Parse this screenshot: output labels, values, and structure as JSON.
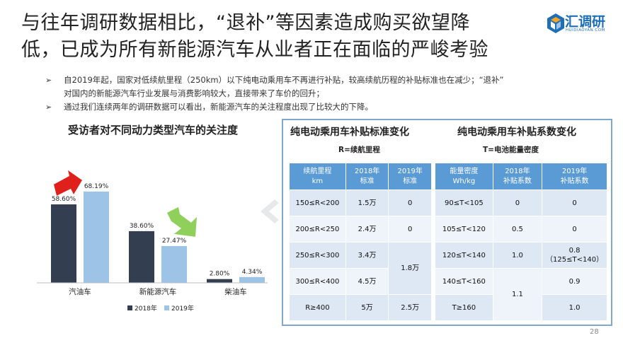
{
  "page": {
    "title_line1": "与往年调研数据相比，“退补”等因素造成购买欲望降",
    "title_line2": "低，已成为所有新能源汽车从业者正在面临的严峻考验",
    "logo_text": "汇调研",
    "logo_sub": "HUIDIAOYAN.COM",
    "page_number": "28"
  },
  "bullets": {
    "b1_line1": "自2019年起，国家对低续航里程（250km）以下纯电动乘用车不再进行补贴，较高续航历程的补贴标准也在减少；“退补”",
    "b1_line2": "对国内的新能源汽车行业发展与消费影响较大，直接带来了车价的回升；",
    "b2": "通过我们连续两年的调研数据可以看出，新能源汽车的关注程度出现了比较大的下降。",
    "mark": "➢"
  },
  "chart_data": {
    "type": "bar",
    "title": "受访者对不同动力类型汽车的关注度",
    "categories": [
      "汽油车",
      "新能源汽车",
      "柴油车"
    ],
    "series": [
      {
        "name": "2018年",
        "values": [
          58.6,
          38.6,
          2.8
        ],
        "labels": [
          "58.60%",
          "38.60%",
          "2.80%"
        ],
        "color": "#333f50"
      },
      {
        "name": "2019年",
        "values": [
          68.19,
          27.47,
          4.34
        ],
        "labels": [
          "68.19%",
          "27.47%",
          "4.34%"
        ],
        "color": "#9dc3e6"
      }
    ],
    "ylim": [
      0,
      75
    ],
    "grid": false,
    "legend": "bottom",
    "colors": {
      "up_arrow": "#e0201b",
      "down_arrow": "#8fcf5a"
    }
  },
  "table1": {
    "title": "纯电动乘用车补贴标准变化",
    "subtitle": "R=续航里程",
    "headers": [
      [
        "续航里程",
        "km"
      ],
      [
        "2018年",
        "标准"
      ],
      [
        "2019年",
        "标准"
      ]
    ],
    "rows": [
      [
        "150≤R<200",
        "1.5万",
        "0"
      ],
      [
        "200≤R<250",
        "2.4万",
        "0"
      ],
      [
        "250≤R<300",
        "3.4万",
        "1.8万"
      ],
      [
        "300≤R<400",
        "4.5万",
        ""
      ],
      [
        "R≥400",
        "5万",
        "2.5万"
      ]
    ]
  },
  "table2": {
    "title": "纯电动乘用车补贴系数变化",
    "subtitle": "T=电池能量密度",
    "headers": [
      [
        "能量密度",
        "Wh/kg"
      ],
      [
        "2018年",
        "补贴系数"
      ],
      [
        "2019年",
        "补贴系数"
      ]
    ],
    "rows": [
      [
        "90≤T<105",
        "0",
        "0"
      ],
      [
        "105≤T<120",
        "0.5",
        "0"
      ],
      [
        "120≤T<140",
        "1.0",
        "0.8",
        "（125≤T<140）"
      ],
      [
        "140≤T<160",
        "1.1",
        "0.9"
      ],
      [
        "T≥160",
        "",
        "1.0"
      ]
    ]
  }
}
